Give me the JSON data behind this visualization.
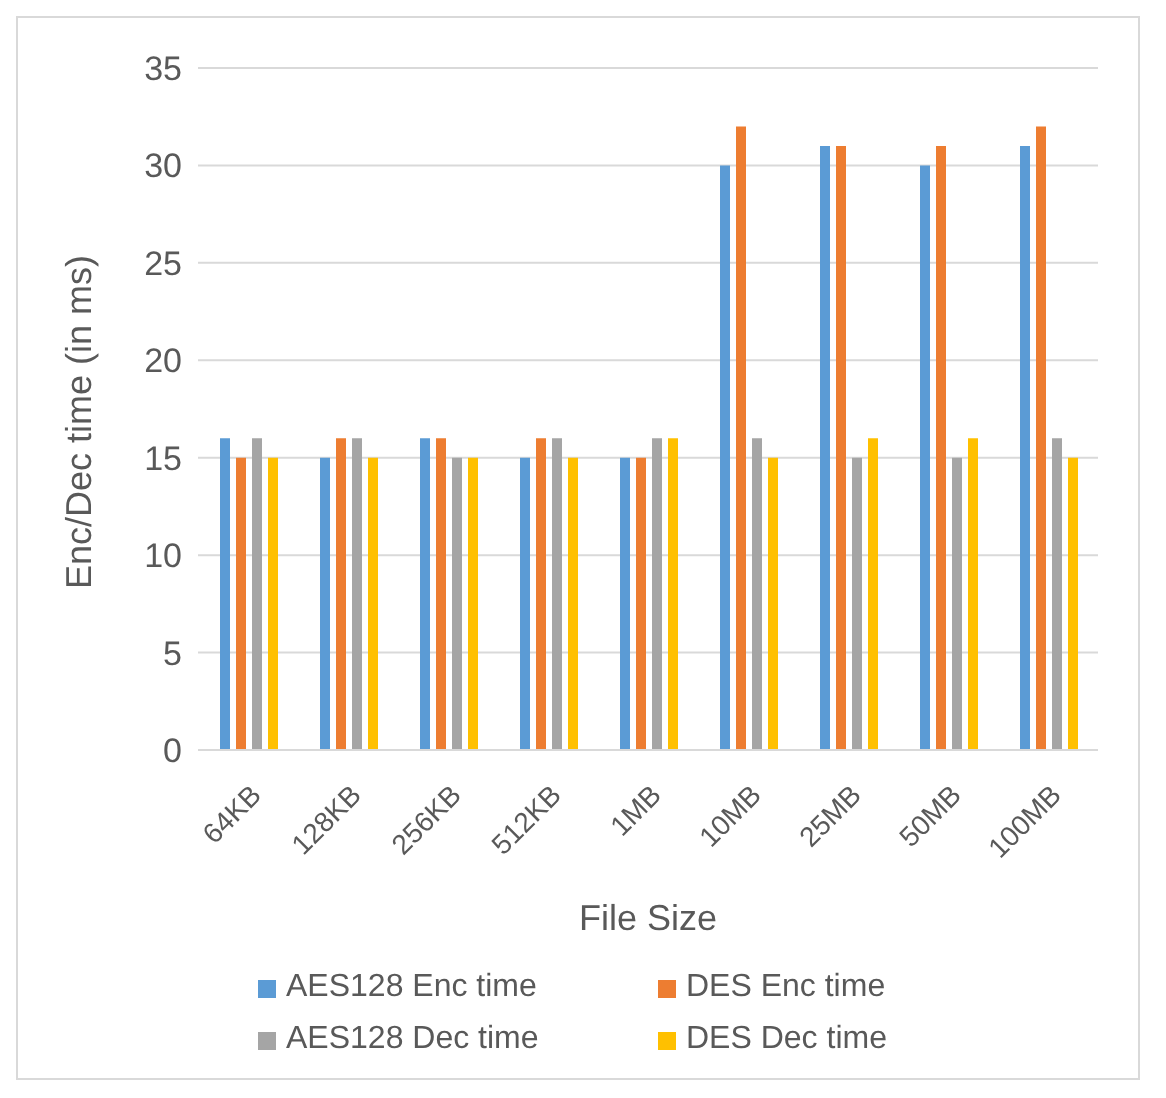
{
  "chart_data": {
    "type": "bar",
    "xlabel": "File Size",
    "ylabel": "Enc/Dec time (in ms)",
    "categories": [
      "64KB",
      "128KB",
      "256KB",
      "512KB",
      "1MB",
      "10MB",
      "25MB",
      "50MB",
      "100MB"
    ],
    "series": [
      {
        "name": "AES128 Enc time",
        "color": "#5b9bd5",
        "values": [
          16,
          15,
          16,
          15,
          15,
          30,
          31,
          30,
          31
        ]
      },
      {
        "name": "DES Enc time",
        "color": "#ed7d31",
        "values": [
          15,
          16,
          16,
          16,
          15,
          32,
          31,
          31,
          32
        ]
      },
      {
        "name": "AES128 Dec time",
        "color": "#a5a5a5",
        "values": [
          16,
          16,
          15,
          16,
          16,
          16,
          15,
          15,
          16
        ]
      },
      {
        "name": "DES Dec time",
        "color": "#ffc000",
        "values": [
          15,
          15,
          15,
          15,
          16,
          15,
          16,
          16,
          15
        ]
      }
    ],
    "ylim": [
      0,
      35
    ],
    "yticks": [
      0,
      5,
      10,
      15,
      20,
      25,
      30,
      35
    ],
    "grid": "y",
    "legend": "bottom"
  }
}
